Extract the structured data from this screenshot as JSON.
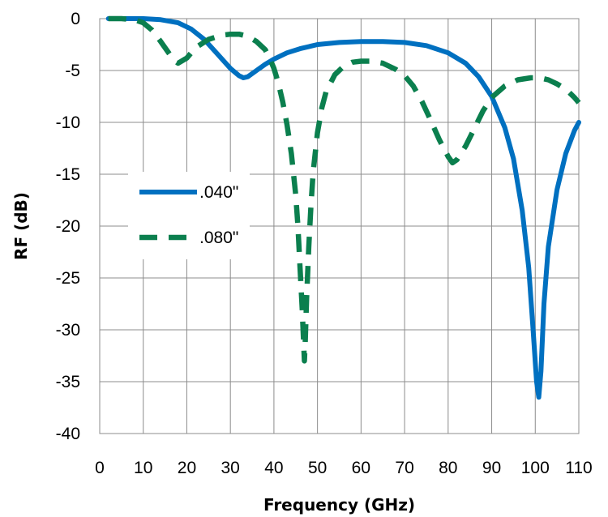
{
  "chart_data": {
    "type": "line",
    "xlabel": "Frequency (GHz)",
    "ylabel": "RF (dB)",
    "xlim": [
      0,
      110
    ],
    "ylim": [
      -40,
      0
    ],
    "xticks": [
      0,
      10,
      20,
      30,
      40,
      50,
      60,
      70,
      80,
      90,
      100,
      110
    ],
    "yticks": [
      0,
      -5,
      -10,
      -15,
      -20,
      -25,
      -30,
      -35,
      -40
    ],
    "grid": true,
    "legend_position": "left",
    "series": [
      {
        "name": ".040\"",
        "color": "#0070C0",
        "style": "solid",
        "x": [
          2,
          5,
          10,
          14,
          18,
          21,
          24,
          27,
          30,
          32,
          33,
          34,
          36,
          38,
          40,
          43,
          46,
          50,
          55,
          60,
          65,
          70,
          75,
          80,
          84,
          87,
          90,
          93,
          95,
          97,
          98.5,
          99.5,
          100.3,
          100.8,
          101.3,
          102,
          103,
          105,
          107,
          109,
          110
        ],
        "y": [
          0,
          0,
          0,
          -0.1,
          -0.4,
          -1.0,
          -2.0,
          -3.4,
          -4.8,
          -5.5,
          -5.7,
          -5.6,
          -5.0,
          -4.4,
          -3.9,
          -3.3,
          -2.9,
          -2.5,
          -2.3,
          -2.2,
          -2.2,
          -2.3,
          -2.6,
          -3.3,
          -4.3,
          -5.6,
          -7.5,
          -10.5,
          -13.5,
          -18.5,
          -24.0,
          -30.0,
          -35.0,
          -36.5,
          -34.0,
          -27.5,
          -22.0,
          -16.5,
          -13.0,
          -10.8,
          -10.0
        ]
      },
      {
        "name": ".080\"",
        "color": "#0B7F4E",
        "style": "dashed",
        "x": [
          2,
          5,
          8,
          10,
          12,
          14,
          16,
          17,
          18,
          20,
          22,
          25,
          28,
          30,
          32,
          34,
          36,
          38,
          39,
          40,
          41,
          42,
          43,
          44,
          45,
          45.5,
          46,
          46.5,
          46.8,
          47,
          47.2,
          47.5,
          48,
          48.5,
          49,
          50,
          51,
          52,
          54,
          56,
          58,
          60,
          62,
          65,
          68,
          70,
          72,
          74,
          76,
          78,
          80,
          81,
          82,
          84,
          86,
          88,
          90,
          93,
          96,
          99,
          101,
          103,
          105,
          107,
          109,
          110
        ],
        "y": [
          0,
          0,
          -0.1,
          -0.4,
          -1.1,
          -2.2,
          -3.4,
          -4.0,
          -4.3,
          -3.8,
          -2.8,
          -2.0,
          -1.6,
          -1.5,
          -1.5,
          -1.7,
          -2.2,
          -3.0,
          -3.8,
          -4.8,
          -6.2,
          -8.0,
          -10.2,
          -13.0,
          -17.0,
          -20.0,
          -24.0,
          -28.0,
          -31.0,
          -33.0,
          -31.0,
          -27.0,
          -22.0,
          -18.0,
          -14.8,
          -11.0,
          -8.6,
          -7.0,
          -5.4,
          -4.6,
          -4.2,
          -4.1,
          -4.1,
          -4.3,
          -4.9,
          -5.5,
          -6.5,
          -8.0,
          -9.8,
          -11.7,
          -13.3,
          -13.9,
          -13.6,
          -12.3,
          -10.6,
          -8.9,
          -7.6,
          -6.5,
          -5.9,
          -5.7,
          -5.7,
          -5.9,
          -6.3,
          -6.8,
          -7.6,
          -8.1
        ]
      }
    ]
  }
}
